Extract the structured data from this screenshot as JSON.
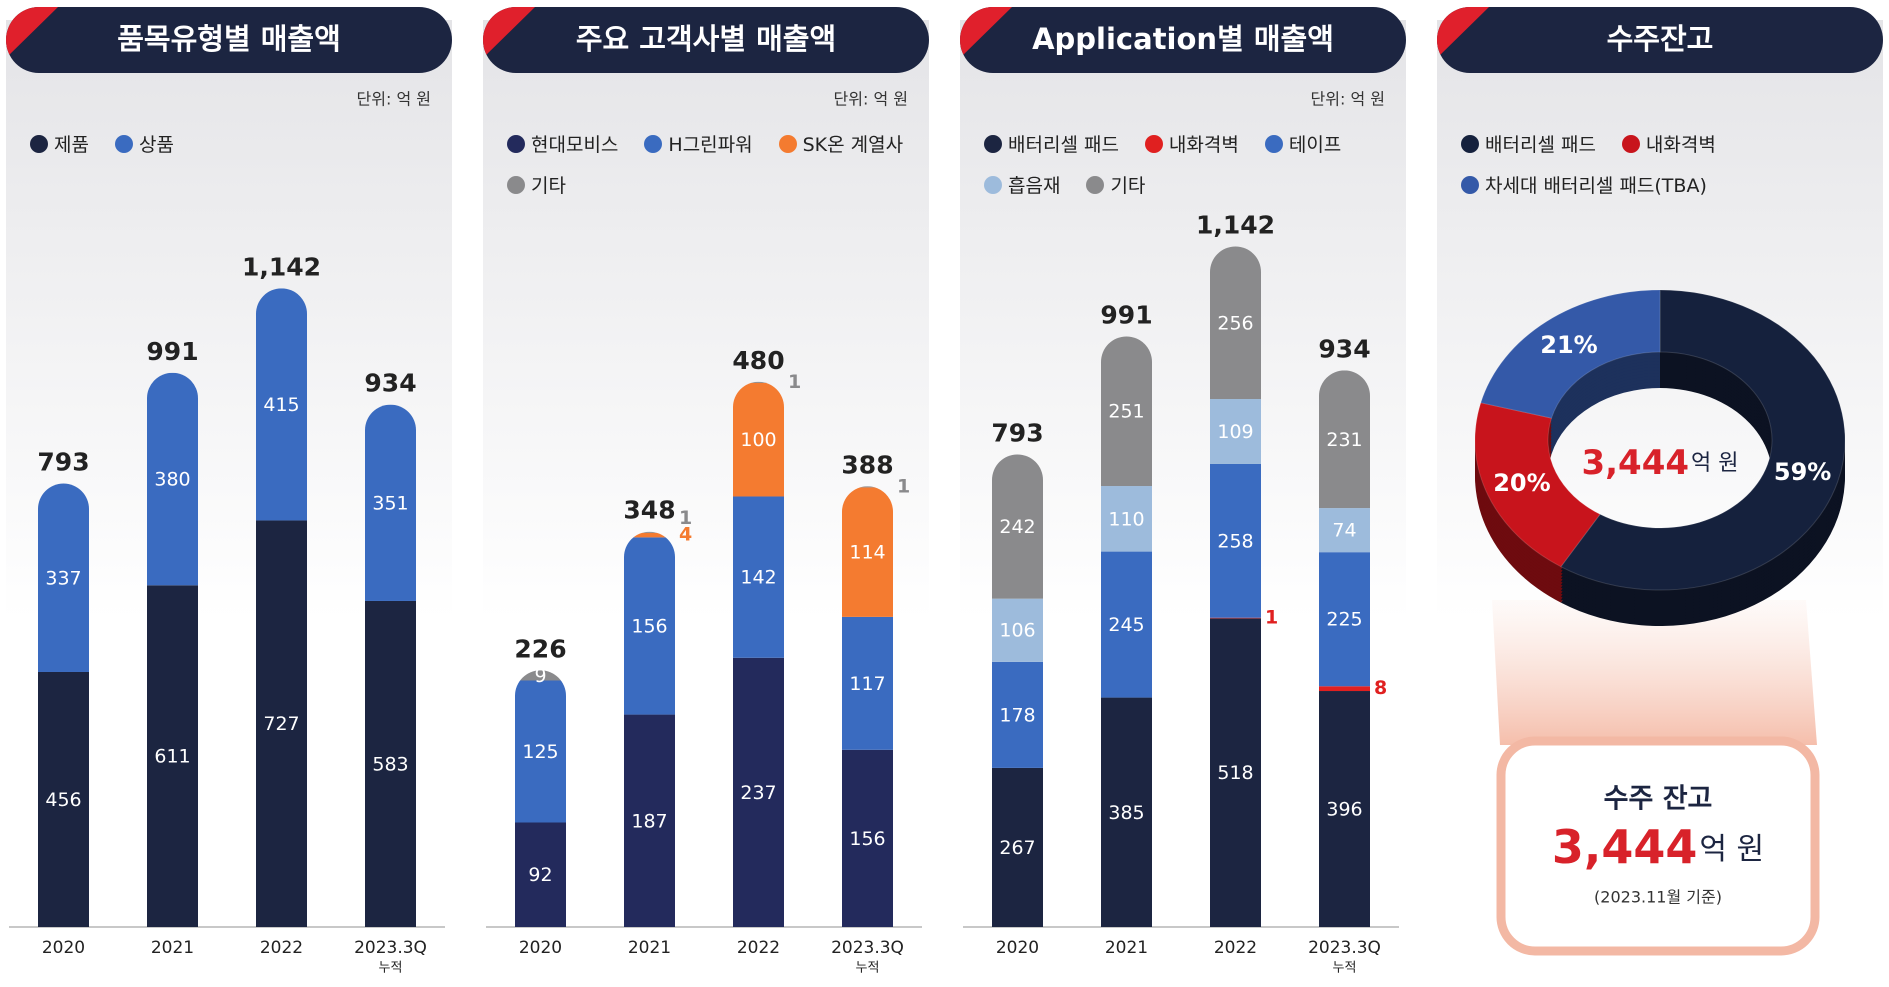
{
  "chart_data": [
    {
      "type": "bar",
      "title": "품목유형별 매출액",
      "unit_label": "단위: 억 원",
      "categories": [
        "2020",
        "2021",
        "2022",
        "2023.3Q"
      ],
      "category_sublabels": [
        null,
        null,
        null,
        "누적"
      ],
      "series": [
        {
          "name": "제품",
          "color": "#1c2541",
          "values": [
            456,
            611,
            727,
            583
          ]
        },
        {
          "name": "상품",
          "color": "#3a6bc0",
          "values": [
            337,
            380,
            415,
            351
          ]
        }
      ],
      "totals": [
        793,
        991,
        1142,
        934
      ],
      "total_labels": [
        "793",
        "991",
        "1,142",
        "934"
      ],
      "ylim": [
        0,
        1300
      ]
    },
    {
      "type": "bar",
      "title": "주요 고객사별 매출액",
      "unit_label": "단위: 억 원",
      "categories": [
        "2020",
        "2021",
        "2022",
        "2023.3Q"
      ],
      "category_sublabels": [
        null,
        null,
        null,
        "누적"
      ],
      "series": [
        {
          "name": "현대모비스",
          "color": "#232a5c",
          "values": [
            92,
            187,
            237,
            156
          ]
        },
        {
          "name": "H그린파워",
          "color": "#3a6bc0",
          "values": [
            125,
            156,
            142,
            117
          ]
        },
        {
          "name": "SK온 계열사",
          "color": "#f47b30",
          "values": [
            null,
            4,
            100,
            114
          ]
        },
        {
          "name": "기타",
          "color": "#8a8a8c",
          "values": [
            9,
            1,
            1,
            1
          ]
        }
      ],
      "totals": [
        226,
        348,
        480,
        388
      ],
      "total_labels": [
        "226",
        "348",
        "480",
        "388"
      ],
      "ylim": [
        0,
        640
      ]
    },
    {
      "type": "bar",
      "title": "Application별 매출액",
      "unit_label": "단위: 억 원",
      "categories": [
        "2020",
        "2021",
        "2022",
        "2023.3Q"
      ],
      "category_sublabels": [
        null,
        null,
        null,
        "누적"
      ],
      "series": [
        {
          "name": "배터리셀 패드",
          "color": "#1c2541",
          "values": [
            267,
            385,
            518,
            396
          ]
        },
        {
          "name": "내화격벽",
          "color": "#e02020",
          "values": [
            null,
            null,
            1,
            8
          ]
        },
        {
          "name": "테이프",
          "color": "#3a6bc0",
          "values": [
            178,
            245,
            258,
            225
          ]
        },
        {
          "name": "흡음재",
          "color": "#9dbbdc",
          "values": [
            106,
            110,
            109,
            74
          ]
        },
        {
          "name": "기타",
          "color": "#8a8a8c",
          "values": [
            242,
            251,
            256,
            231
          ]
        }
      ],
      "totals": [
        793,
        991,
        1142,
        934
      ],
      "total_labels": [
        "793",
        "991",
        "1,142",
        "934"
      ],
      "ylim": [
        0,
        1220
      ]
    },
    {
      "type": "pie",
      "title": "수주잔고",
      "categories": [
        "배터리셀 패드",
        "내화격벽",
        "차세대 배터리셀 패드(TBA)"
      ],
      "values": [
        59,
        20,
        21
      ],
      "value_labels": [
        "59%",
        "20%",
        "21%"
      ],
      "colors": [
        "#15213d",
        "#c8141c",
        "#3459a8"
      ],
      "center_value": 3444,
      "center_label": "3,444",
      "unit": "억 원",
      "box_title": "수주 잔고",
      "box_note": "(2023.11월 기준)"
    }
  ]
}
